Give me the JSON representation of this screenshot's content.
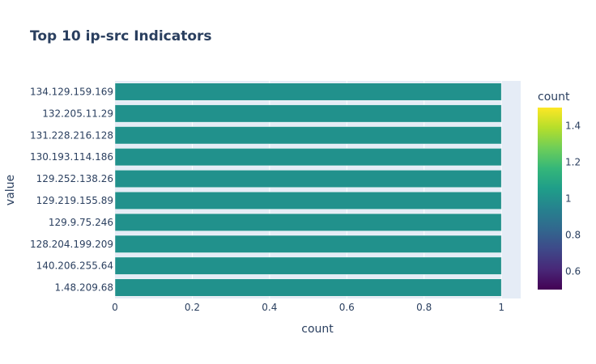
{
  "chart_data": {
    "type": "bar",
    "orientation": "horizontal",
    "title": "Top 10 ip-src Indicators",
    "xlabel": "count",
    "ylabel": "value",
    "categories": [
      "134.129.159.169",
      "132.205.11.29",
      "131.228.216.128",
      "130.193.114.186",
      "129.252.138.26",
      "129.219.155.89",
      "129.9.75.246",
      "128.204.199.209",
      "140.206.255.64",
      "1.48.209.68"
    ],
    "values": [
      1,
      1,
      1,
      1,
      1,
      1,
      1,
      1,
      1,
      1
    ],
    "xlim": [
      0,
      1.05
    ],
    "xticks": [
      0,
      0.2,
      0.4,
      0.6,
      0.8,
      1
    ],
    "xtick_labels": [
      "0",
      "0.2",
      "0.4",
      "0.6",
      "0.8",
      "1"
    ],
    "bar_color": "#21918c",
    "plot_bg": "#e5ecf6",
    "colorbar": {
      "title": "count",
      "range": [
        0.5,
        1.5
      ],
      "ticks": [
        0.6,
        0.8,
        1,
        1.2,
        1.4
      ],
      "tick_labels": [
        "0.6",
        "0.8",
        "1",
        "1.2",
        "1.4"
      ],
      "colorscale": [
        "#440154",
        "#482878",
        "#3e4989",
        "#31688e",
        "#26828e",
        "#1f9e89",
        "#35b779",
        "#6ece58",
        "#b5de2b",
        "#fde725"
      ]
    }
  }
}
